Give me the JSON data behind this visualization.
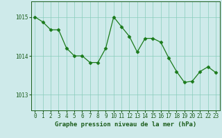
{
  "x": [
    0,
    1,
    2,
    3,
    4,
    5,
    6,
    7,
    8,
    9,
    10,
    11,
    12,
    13,
    14,
    15,
    16,
    17,
    18,
    19,
    20,
    21,
    22,
    23
  ],
  "y": [
    1015.0,
    1014.87,
    1014.67,
    1014.67,
    1014.2,
    1014.0,
    1014.0,
    1013.83,
    1013.83,
    1014.2,
    1015.0,
    1014.75,
    1014.5,
    1014.1,
    1014.45,
    1014.45,
    1014.35,
    1013.95,
    1013.6,
    1013.32,
    1013.35,
    1013.6,
    1013.72,
    1013.57
  ],
  "line_color": "#1a7a1a",
  "marker": "D",
  "marker_size": 2.5,
  "marker_linewidth": 0.5,
  "line_width": 0.9,
  "bg_color": "#ceeaea",
  "grid_color": "#88ccbb",
  "axis_color": "#1a5c1a",
  "ylabel_ticks": [
    1013,
    1014,
    1015
  ],
  "xlabel_ticks": [
    0,
    1,
    2,
    3,
    4,
    5,
    6,
    7,
    8,
    9,
    10,
    11,
    12,
    13,
    14,
    15,
    16,
    17,
    18,
    19,
    20,
    21,
    22,
    23
  ],
  "xlabel": "Graphe pression niveau de la mer (hPa)",
  "xlabel_fontsize": 6.5,
  "tick_fontsize": 5.5,
  "ylim": [
    1012.6,
    1015.4
  ],
  "xlim": [
    -0.5,
    23.5
  ],
  "figsize": [
    3.2,
    2.0
  ],
  "dpi": 100
}
